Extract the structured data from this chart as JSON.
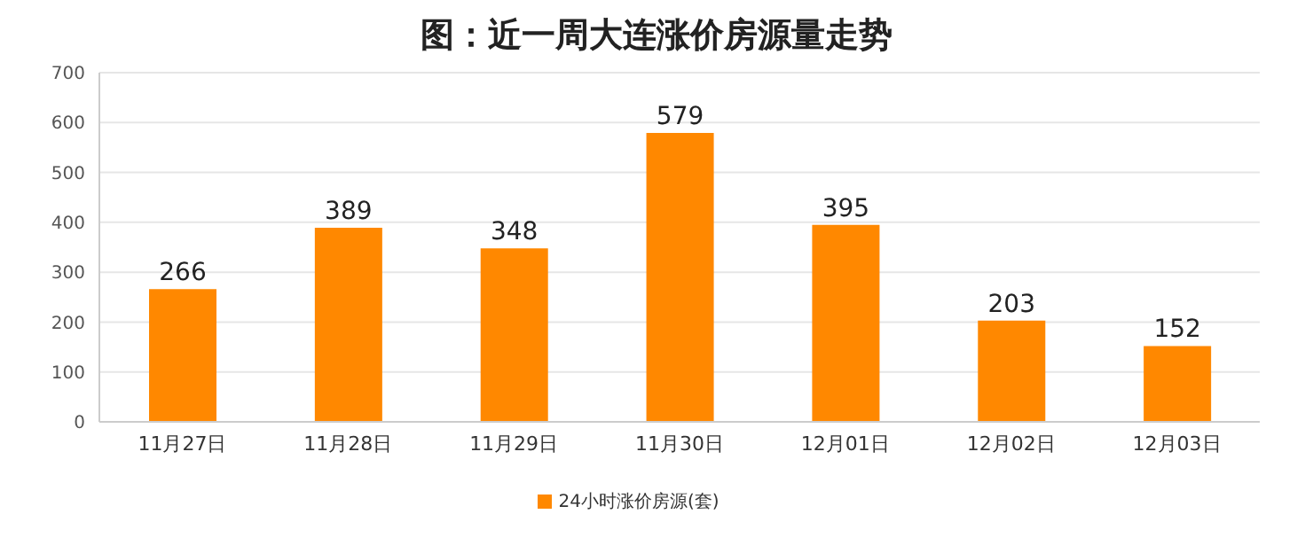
{
  "chart_data": {
    "type": "bar",
    "title": "图：近一周大连涨价房源量走势",
    "categories": [
      "11月27日",
      "11月28日",
      "11月29日",
      "11月30日",
      "12月01日",
      "12月02日",
      "12月03日"
    ],
    "series": [
      {
        "name": "24小时涨价房源(套)",
        "color": "#ff8800",
        "values": [
          266,
          389,
          348,
          579,
          395,
          203,
          152
        ]
      }
    ],
    "ylim": [
      0,
      700
    ],
    "yticks": [
      0,
      100,
      200,
      300,
      400,
      500,
      600,
      700
    ],
    "grid": "y",
    "legend": "bottom",
    "data_labels": true
  }
}
